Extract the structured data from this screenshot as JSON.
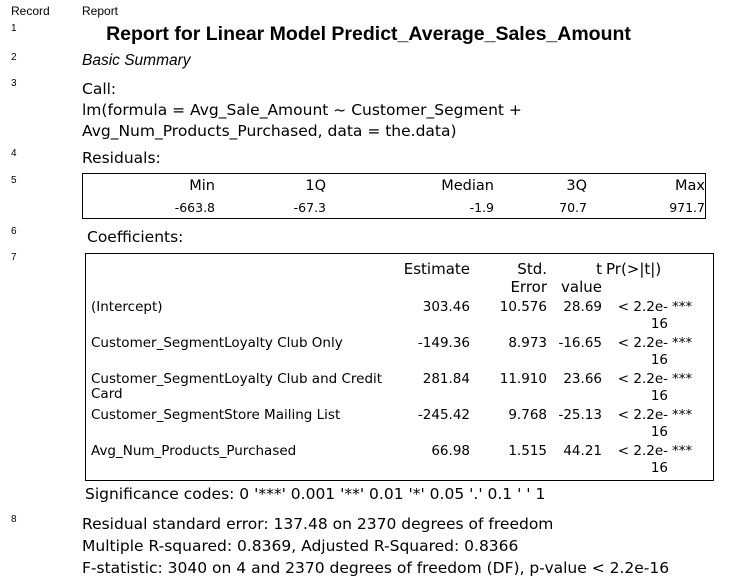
{
  "header": {
    "record_col": "Record",
    "report_col": "Report"
  },
  "record_numbers": [
    "1",
    "2",
    "3",
    "4",
    "5",
    "6",
    "7",
    "8"
  ],
  "title": "Report for Linear Model Predict_Average_Sales_Amount",
  "basic_summary": "Basic Summary",
  "call": {
    "label": "Call:",
    "line1": "lm(formula = Avg_Sale_Amount ~ Customer_Segment +",
    "line2": "Avg_Num_Products_Purchased, data = the.data)"
  },
  "residuals": {
    "label": "Residuals:",
    "headers": [
      "Min",
      "1Q",
      "Median",
      "3Q",
      "Max"
    ],
    "values": [
      "-663.8",
      "-67.3",
      "-1.9",
      "70.7",
      "971.7"
    ]
  },
  "coefficients": {
    "label": "Coefficients:",
    "headers": {
      "estimate": "Estimate",
      "std_error_1": "Std.",
      "std_error_2": "Error",
      "t_value_1": "t",
      "t_value_2": "value",
      "pr": "Pr(>|t|)"
    },
    "rows": [
      {
        "name": "(Intercept)",
        "name2": "",
        "estimate": "303.46",
        "std_error": "10.576",
        "t_value": "28.69",
        "p1": "< 2.2e-",
        "p2": "16",
        "sig": "***"
      },
      {
        "name": "Customer_SegmentLoyalty Club Only",
        "name2": "",
        "estimate": "-149.36",
        "std_error": "8.973",
        "t_value": "-16.65",
        "p1": "< 2.2e-",
        "p2": "16",
        "sig": "***"
      },
      {
        "name": "Customer_SegmentLoyalty Club and Credit",
        "name2": "Card",
        "estimate": "281.84",
        "std_error": "11.910",
        "t_value": "23.66",
        "p1": "< 2.2e-",
        "p2": "16",
        "sig": "***"
      },
      {
        "name": "Customer_SegmentStore Mailing List",
        "name2": "",
        "estimate": "-245.42",
        "std_error": "9.768",
        "t_value": "-25.13",
        "p1": "< 2.2e-",
        "p2": "16",
        "sig": "***"
      },
      {
        "name": "Avg_Num_Products_Purchased",
        "name2": "",
        "estimate": "66.98",
        "std_error": "1.515",
        "t_value": "44.21",
        "p1": "< 2.2e-",
        "p2": "16",
        "sig": "***"
      }
    ]
  },
  "significance_codes": "Significance codes: 0 '***' 0.001 '**' 0.01 '*' 0.05 '.' 0.1 ' ' 1",
  "model_stats": {
    "line1": "Residual standard error: 137.48 on 2370 degrees of freedom",
    "line2": "Multiple R-squared: 0.8369, Adjusted R-Squared: 0.8366",
    "line3": "F-statistic: 3040 on 4 and 2370 degrees of freedom (DF), p-value < 2.2e-16"
  }
}
